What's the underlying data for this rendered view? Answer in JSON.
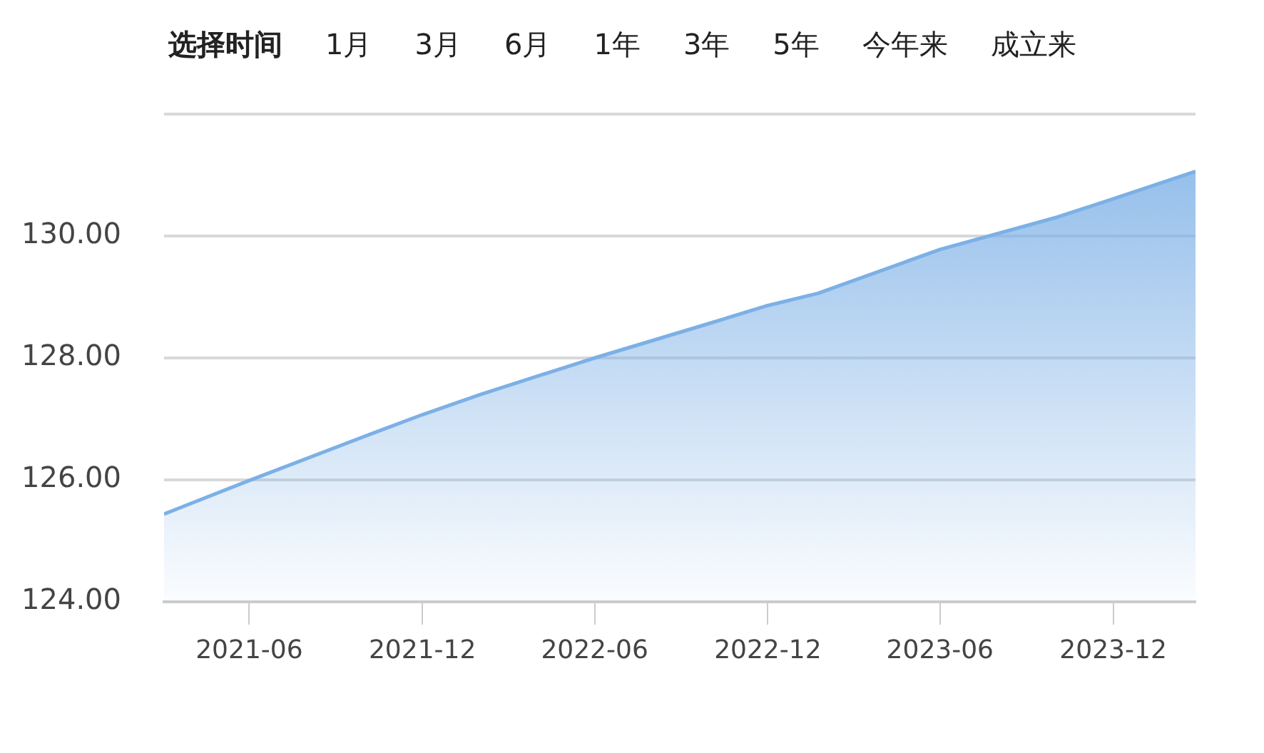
{
  "chart_data": {
    "type": "area",
    "annotations": [
      "选择时间",
      "1月",
      "3月",
      "6月",
      "1年",
      "3年",
      "5年",
      "今年来",
      "成立来"
    ],
    "x": [
      "2021-03-03",
      "2021-06-01",
      "2021-10-07",
      "2021-12-01",
      "2022-01-31",
      "2022-06-01",
      "2022-10-01",
      "2022-12-01",
      "2023-01-23",
      "2023-06-01",
      "2023-10-03",
      "2023-12-01",
      "2024-02-26"
    ],
    "series": [
      {
        "color": "#7cb0e6",
        "values": [
          125.44,
          125.99,
          126.75,
          127.07,
          127.4,
          128.0,
          128.57,
          128.86,
          129.06,
          129.78,
          130.31,
          130.61,
          131.06
        ]
      }
    ],
    "xlim": [
      "2021-03-03",
      "2024-02-26"
    ],
    "xticks": [
      "2021-06",
      "2021-12",
      "2022-06",
      "2022-12",
      "2023-06",
      "2023-12"
    ],
    "ylim": [
      124,
      132
    ],
    "yticks": [
      {
        "value": 124,
        "label": "124.00"
      },
      {
        "value": 126,
        "label": "126.00"
      },
      {
        "value": 128,
        "label": "128.00"
      },
      {
        "value": 130,
        "label": "130.00"
      },
      {
        "value": 132,
        "label": null
      }
    ],
    "grid": "y",
    "legend": false,
    "marker": "none",
    "line_style": "solid"
  }
}
